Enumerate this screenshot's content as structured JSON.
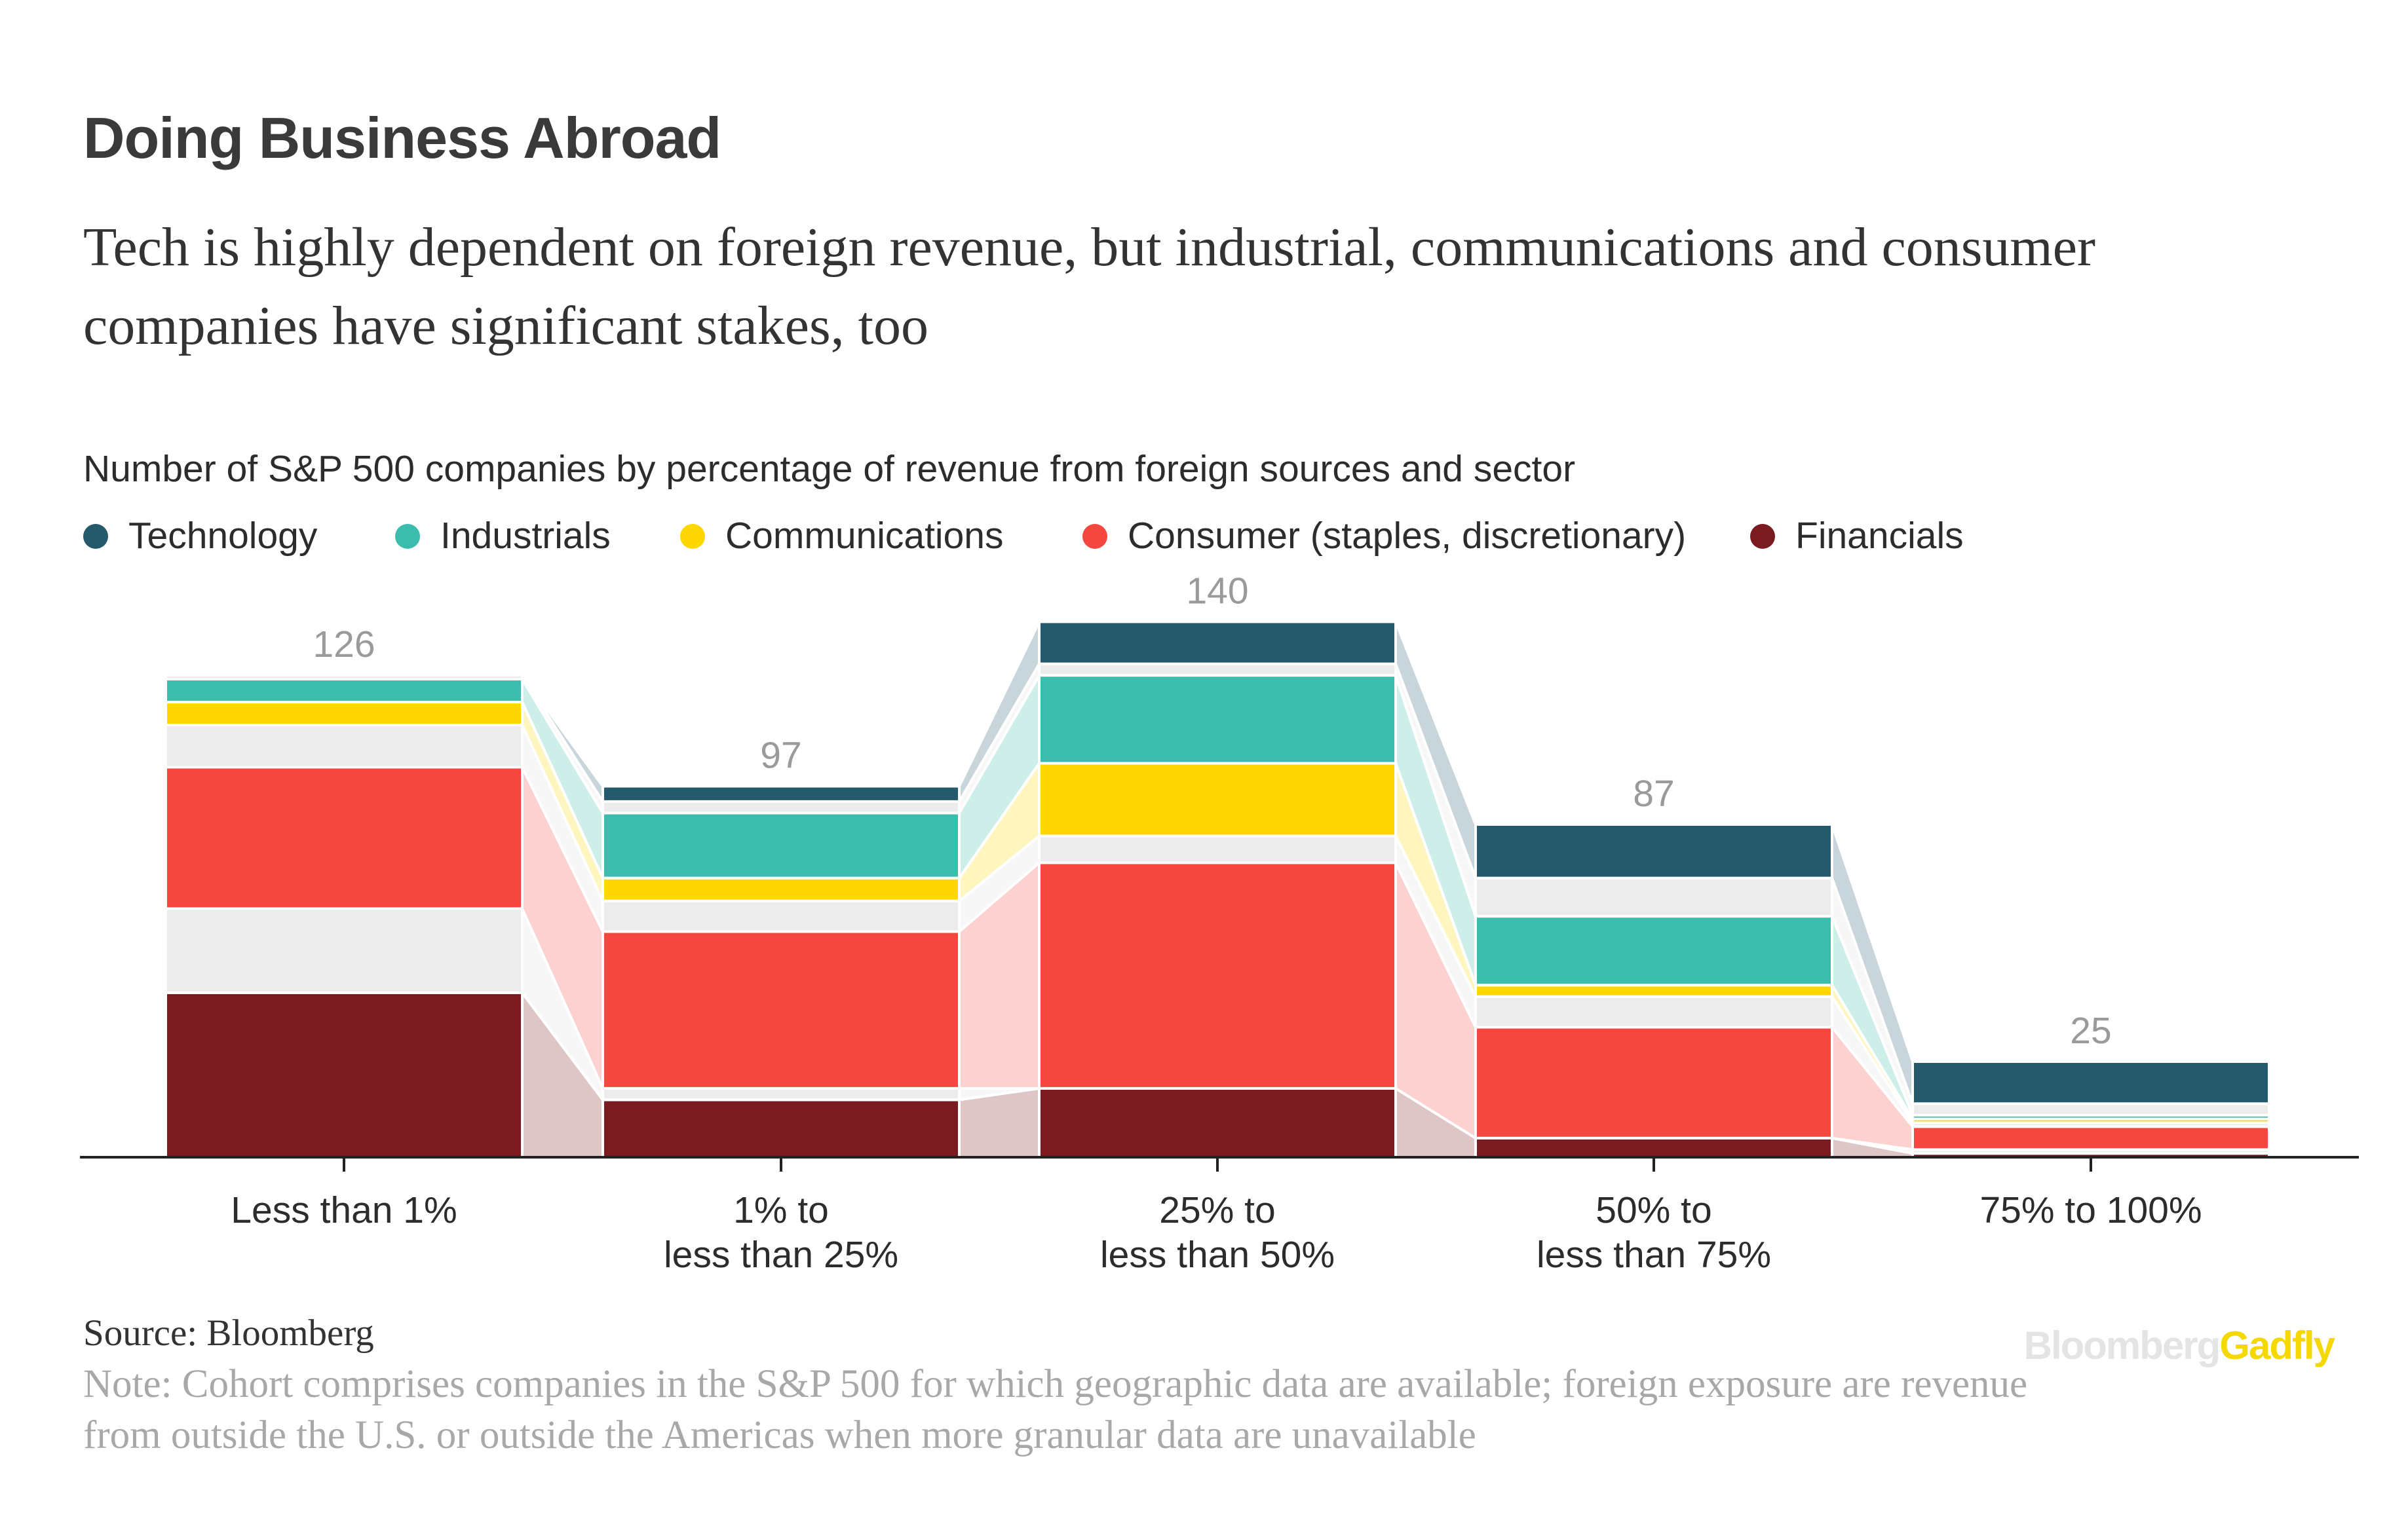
{
  "title": "Doing Business Abroad",
  "subtitle": "Tech is highly dependent on foreign revenue, but industrial, communications and consumer companies have significant stakes, too",
  "chart_description": "Number of S&P 500 companies by percentage of revenue from foreign sources and sector",
  "legend": [
    {
      "label": "Technology",
      "color": "#25596c"
    },
    {
      "label": "Industrials",
      "color": "#3bbcac"
    },
    {
      "label": "Communications",
      "color": "#ffd700"
    },
    {
      "label": "Consumer (staples, discretionary)",
      "color": "#f3473f"
    },
    {
      "label": "Financials",
      "color": "#7a1a21"
    }
  ],
  "source": "Source: Bloomberg",
  "note": "Note: Cohort comprises companies in the S&P 500 for which geographic data are available; foreign exposure are revenue from outside the U.S. or outside the Americas when more granular data are unavailable",
  "brand": {
    "part1": "Bloomberg",
    "part2": "Gadfly"
  },
  "chart_data": {
    "type": "bar",
    "stacked": true,
    "categories": [
      [
        "Less than 1%"
      ],
      [
        "1% to",
        "less than 25%"
      ],
      [
        "25% to",
        "less than 50%"
      ],
      [
        "50% to",
        "less than 75%"
      ],
      [
        "75% to 100%"
      ]
    ],
    "totals": [
      126,
      97,
      140,
      87,
      25
    ],
    "segments_bottom_to_top": [
      [
        {
          "sector": "Financials",
          "value": 43
        },
        {
          "sector": "Other",
          "value": 22
        },
        {
          "sector": "Consumer (staples, discretionary)",
          "value": 37
        },
        {
          "sector": "Other",
          "value": 11
        },
        {
          "sector": "Communications",
          "value": 6
        },
        {
          "sector": "Industrials",
          "value": 6
        },
        {
          "sector": "Other",
          "value": 1
        },
        {
          "sector": "Technology",
          "value": 0
        }
      ],
      [
        {
          "sector": "Financials",
          "value": 15
        },
        {
          "sector": "Other",
          "value": 3
        },
        {
          "sector": "Consumer (staples, discretionary)",
          "value": 41
        },
        {
          "sector": "Other",
          "value": 8
        },
        {
          "sector": "Communications",
          "value": 6
        },
        {
          "sector": "Industrials",
          "value": 17
        },
        {
          "sector": "Other",
          "value": 3
        },
        {
          "sector": "Technology",
          "value": 4
        }
      ],
      [
        {
          "sector": "Financials",
          "value": 18
        },
        {
          "sector": "Other",
          "value": 0
        },
        {
          "sector": "Consumer (staples, discretionary)",
          "value": 59
        },
        {
          "sector": "Other",
          "value": 7
        },
        {
          "sector": "Communications",
          "value": 19
        },
        {
          "sector": "Industrials",
          "value": 23
        },
        {
          "sector": "Other",
          "value": 3
        },
        {
          "sector": "Technology",
          "value": 11
        }
      ],
      [
        {
          "sector": "Financials",
          "value": 5
        },
        {
          "sector": "Other",
          "value": 0
        },
        {
          "sector": "Consumer (staples, discretionary)",
          "value": 29
        },
        {
          "sector": "Other",
          "value": 8
        },
        {
          "sector": "Communications",
          "value": 3
        },
        {
          "sector": "Industrials",
          "value": 18
        },
        {
          "sector": "Other",
          "value": 10
        },
        {
          "sector": "Technology",
          "value": 14
        }
      ],
      [
        {
          "sector": "Financials",
          "value": 1
        },
        {
          "sector": "Other",
          "value": 1
        },
        {
          "sector": "Consumer (staples, discretionary)",
          "value": 6
        },
        {
          "sector": "Other",
          "value": 1
        },
        {
          "sector": "Communications",
          "value": 1
        },
        {
          "sector": "Industrials",
          "value": 1
        },
        {
          "sector": "Other",
          "value": 3
        },
        {
          "sector": "Technology",
          "value": 11
        }
      ]
    ],
    "other_color": "#ececec",
    "ylim": [
      0,
      145
    ]
  }
}
